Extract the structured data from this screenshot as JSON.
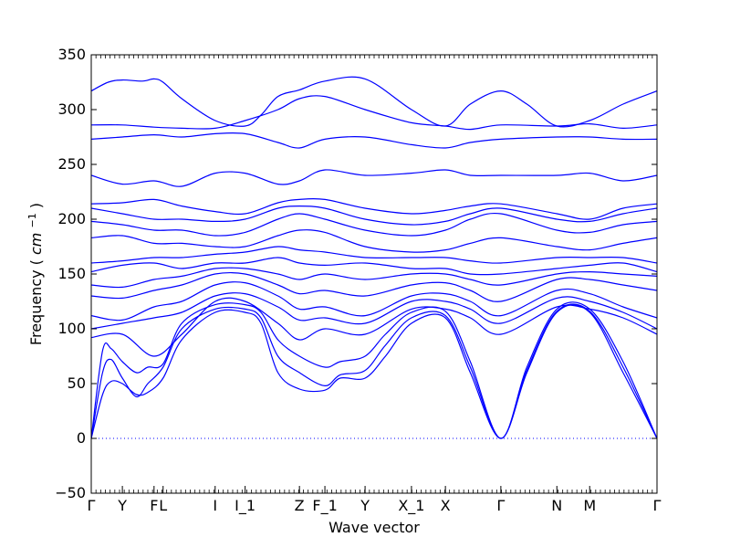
{
  "chart_data": {
    "type": "line",
    "title": "",
    "xlabel": "Wave vector",
    "ylabel": "Frequency",
    "ylabel_unit": "cm",
    "ylabel_unit_exponent": "−1",
    "ylim": [
      -50,
      350
    ],
    "yticks": [
      -50,
      0,
      50,
      100,
      150,
      200,
      250,
      300,
      350
    ],
    "x_range": [
      0,
      1
    ],
    "high_symmetry_points": [
      {
        "label": "Γ",
        "x": 0.0
      },
      {
        "label": "Y",
        "x": 0.055
      },
      {
        "label": "F",
        "x": 0.111
      },
      {
        "label": "L",
        "x": 0.127
      },
      {
        "label": "I",
        "x": 0.219
      },
      {
        "label": "I_1",
        "x": 0.272
      },
      {
        "label": "Z",
        "x": 0.368
      },
      {
        "label": "F_1",
        "x": 0.413
      },
      {
        "label": "Y",
        "x": 0.484
      },
      {
        "label": "X_1",
        "x": 0.566
      },
      {
        "label": "X",
        "x": 0.626
      },
      {
        "label": "Γ",
        "x": 0.724
      },
      {
        "label": "N",
        "x": 0.823
      },
      {
        "label": "M",
        "x": 0.881
      },
      {
        "label": "Γ",
        "x": 1.0
      }
    ],
    "zero_line": {
      "y": 0,
      "style": "dotted"
    },
    "line_color": "#0000ff",
    "bands": [
      {
        "x": [
          0,
          0.02,
          0.035,
          0.055,
          0.08,
          0.1,
          0.127,
          0.16,
          0.219,
          0.272,
          0.3,
          0.33,
          0.368,
          0.413,
          0.44,
          0.484,
          0.52,
          0.566,
          0.626,
          0.67,
          0.724,
          0.77,
          0.823,
          0.881,
          0.94,
          1.0
        ],
        "y": [
          0,
          40,
          52,
          50,
          40,
          42,
          55,
          90,
          115,
          115,
          105,
          60,
          45,
          44,
          55,
          55,
          75,
          105,
          110,
          60,
          0,
          60,
          115,
          115,
          60,
          0
        ]
      },
      {
        "x": [
          0,
          0.02,
          0.035,
          0.055,
          0.08,
          0.1,
          0.127,
          0.16,
          0.219,
          0.272,
          0.3,
          0.33,
          0.368,
          0.413,
          0.44,
          0.484,
          0.52,
          0.566,
          0.626,
          0.67,
          0.724,
          0.77,
          0.823,
          0.881,
          0.94,
          1.0
        ],
        "y": [
          0,
          60,
          72,
          55,
          38,
          50,
          65,
          100,
          118,
          118,
          110,
          75,
          60,
          48,
          58,
          62,
          85,
          110,
          112,
          65,
          0,
          62,
          116,
          116,
          65,
          0
        ]
      },
      {
        "x": [
          0,
          0.02,
          0.035,
          0.055,
          0.08,
          0.1,
          0.127,
          0.16,
          0.219,
          0.272,
          0.3,
          0.33,
          0.368,
          0.413,
          0.44,
          0.484,
          0.52,
          0.566,
          0.626,
          0.67,
          0.724,
          0.77,
          0.823,
          0.881,
          0.94,
          1.0
        ],
        "y": [
          0,
          80,
          82,
          70,
          60,
          65,
          68,
          105,
          122,
          122,
          115,
          90,
          75,
          65,
          70,
          75,
          95,
          115,
          116,
          70,
          0,
          65,
          118,
          118,
          70,
          0
        ]
      },
      {
        "x": [
          0,
          0.055,
          0.111,
          0.16,
          0.219,
          0.272,
          0.33,
          0.368,
          0.413,
          0.484,
          0.566,
          0.626,
          0.67,
          0.724,
          0.823,
          0.881,
          0.94,
          1.0
        ],
        "y": [
          92,
          95,
          75,
          95,
          125,
          125,
          105,
          90,
          100,
          95,
          118,
          118,
          110,
          95,
          120,
          118,
          110,
          95
        ]
      },
      {
        "x": [
          0,
          0.055,
          0.111,
          0.16,
          0.219,
          0.272,
          0.33,
          0.368,
          0.413,
          0.484,
          0.566,
          0.626,
          0.67,
          0.724,
          0.823,
          0.881,
          0.94,
          1.0
        ],
        "y": [
          100,
          105,
          110,
          115,
          130,
          132,
          120,
          108,
          110,
          105,
          125,
          125,
          118,
          105,
          128,
          125,
          115,
          100
        ]
      },
      {
        "x": [
          0,
          0.055,
          0.111,
          0.16,
          0.219,
          0.272,
          0.33,
          0.368,
          0.413,
          0.484,
          0.566,
          0.626,
          0.67,
          0.724,
          0.823,
          0.881,
          0.94,
          1.0
        ],
        "y": [
          112,
          108,
          120,
          125,
          140,
          142,
          130,
          118,
          120,
          112,
          130,
          132,
          125,
          112,
          135,
          132,
          120,
          110
        ]
      },
      {
        "x": [
          0,
          0.055,
          0.111,
          0.16,
          0.219,
          0.272,
          0.33,
          0.368,
          0.413,
          0.484,
          0.566,
          0.626,
          0.67,
          0.724,
          0.823,
          0.881,
          0.94,
          1.0
        ],
        "y": [
          130,
          128,
          135,
          140,
          150,
          150,
          140,
          132,
          135,
          130,
          140,
          142,
          135,
          125,
          145,
          145,
          140,
          135
        ]
      },
      {
        "x": [
          0,
          0.055,
          0.111,
          0.16,
          0.219,
          0.272,
          0.33,
          0.368,
          0.413,
          0.484,
          0.566,
          0.626,
          0.67,
          0.724,
          0.823,
          0.881,
          0.94,
          1.0
        ],
        "y": [
          140,
          138,
          145,
          148,
          155,
          155,
          150,
          145,
          150,
          145,
          150,
          150,
          145,
          140,
          150,
          152,
          150,
          148
        ]
      },
      {
        "x": [
          0,
          0.055,
          0.111,
          0.16,
          0.219,
          0.272,
          0.33,
          0.368,
          0.413,
          0.484,
          0.566,
          0.626,
          0.67,
          0.724,
          0.823,
          0.881,
          0.94,
          1.0
        ],
        "y": [
          152,
          158,
          160,
          155,
          160,
          160,
          165,
          160,
          158,
          160,
          155,
          155,
          150,
          150,
          155,
          158,
          160,
          152
        ]
      },
      {
        "x": [
          0,
          0.055,
          0.111,
          0.16,
          0.219,
          0.272,
          0.33,
          0.368,
          0.413,
          0.484,
          0.566,
          0.626,
          0.67,
          0.724,
          0.823,
          0.881,
          0.94,
          1.0
        ],
        "y": [
          160,
          162,
          165,
          165,
          168,
          170,
          175,
          172,
          170,
          165,
          165,
          165,
          162,
          160,
          165,
          165,
          165,
          160
        ]
      },
      {
        "x": [
          0,
          0.055,
          0.111,
          0.16,
          0.219,
          0.272,
          0.33,
          0.368,
          0.413,
          0.484,
          0.566,
          0.626,
          0.67,
          0.724,
          0.823,
          0.881,
          0.94,
          1.0
        ],
        "y": [
          183,
          185,
          178,
          178,
          175,
          175,
          185,
          190,
          188,
          175,
          170,
          172,
          178,
          183,
          175,
          172,
          178,
          183
        ]
      },
      {
        "x": [
          0,
          0.055,
          0.111,
          0.16,
          0.219,
          0.272,
          0.33,
          0.368,
          0.413,
          0.484,
          0.566,
          0.626,
          0.67,
          0.724,
          0.823,
          0.881,
          0.94,
          1.0
        ],
        "y": [
          198,
          195,
          190,
          190,
          185,
          188,
          200,
          205,
          200,
          190,
          185,
          190,
          200,
          205,
          190,
          188,
          195,
          198
        ]
      },
      {
        "x": [
          0,
          0.055,
          0.111,
          0.16,
          0.219,
          0.272,
          0.33,
          0.368,
          0.413,
          0.484,
          0.566,
          0.626,
          0.67,
          0.724,
          0.823,
          0.881,
          0.94,
          1.0
        ],
        "y": [
          210,
          205,
          200,
          200,
          198,
          200,
          210,
          212,
          210,
          200,
          195,
          198,
          205,
          210,
          200,
          198,
          205,
          210
        ]
      },
      {
        "x": [
          0,
          0.055,
          0.111,
          0.16,
          0.219,
          0.272,
          0.33,
          0.368,
          0.413,
          0.484,
          0.566,
          0.626,
          0.67,
          0.724,
          0.823,
          0.881,
          0.94,
          1.0
        ],
        "y": [
          214,
          215,
          218,
          212,
          207,
          205,
          215,
          218,
          218,
          210,
          205,
          208,
          212,
          214,
          205,
          200,
          210,
          214
        ]
      },
      {
        "x": [
          0,
          0.055,
          0.111,
          0.16,
          0.219,
          0.272,
          0.33,
          0.368,
          0.413,
          0.484,
          0.566,
          0.626,
          0.67,
          0.724,
          0.823,
          0.881,
          0.94,
          1.0
        ],
        "y": [
          240,
          232,
          235,
          230,
          242,
          242,
          232,
          235,
          245,
          240,
          242,
          245,
          240,
          240,
          240,
          242,
          235,
          240
        ]
      },
      {
        "x": [
          0,
          0.055,
          0.111,
          0.16,
          0.219,
          0.272,
          0.33,
          0.368,
          0.413,
          0.484,
          0.566,
          0.626,
          0.67,
          0.724,
          0.823,
          0.881,
          0.94,
          1.0
        ],
        "y": [
          273,
          275,
          277,
          275,
          278,
          278,
          270,
          265,
          273,
          275,
          268,
          265,
          270,
          273,
          275,
          275,
          273,
          273
        ]
      },
      {
        "x": [
          0,
          0.055,
          0.111,
          0.16,
          0.219,
          0.272,
          0.33,
          0.368,
          0.413,
          0.484,
          0.566,
          0.626,
          0.67,
          0.724,
          0.823,
          0.881,
          0.94,
          1.0
        ],
        "y": [
          286,
          286,
          284,
          283,
          283,
          290,
          300,
          310,
          312,
          300,
          288,
          285,
          282,
          286,
          285,
          287,
          283,
          286
        ]
      },
      {
        "x": [
          0,
          0.03,
          0.055,
          0.09,
          0.111,
          0.127,
          0.16,
          0.219,
          0.272,
          0.3,
          0.33,
          0.368,
          0.413,
          0.484,
          0.566,
          0.626,
          0.67,
          0.724,
          0.77,
          0.823,
          0.881,
          0.94,
          1.0
        ],
        "y": [
          317,
          325,
          327,
          326,
          328,
          325,
          310,
          290,
          285,
          295,
          312,
          318,
          326,
          328,
          300,
          285,
          305,
          317,
          305,
          285,
          290,
          305,
          317
        ]
      }
    ]
  }
}
